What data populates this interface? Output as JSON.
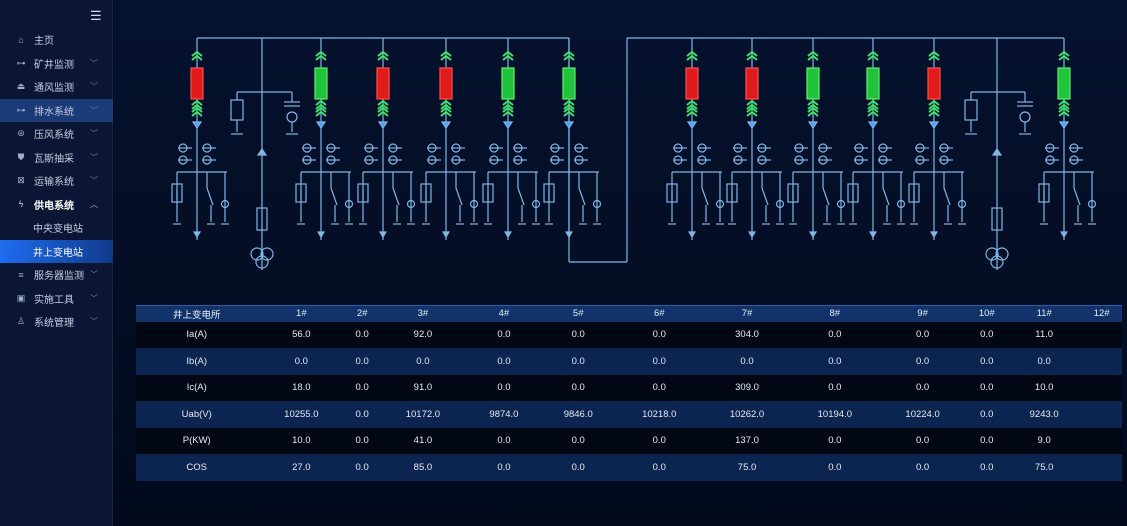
{
  "sidebar": {
    "menu_icon": "hamburger-icon",
    "items": [
      {
        "label": "主页",
        "icon": "home-icon"
      },
      {
        "label": "矿井监测",
        "icon": "monitor-icon",
        "chevron": "﹀"
      },
      {
        "label": "通风监测",
        "icon": "fan-icon",
        "chevron": "﹀"
      },
      {
        "label": "排水系统",
        "icon": "pump-icon",
        "chevron": "﹀",
        "highlight": true
      },
      {
        "label": "压风系统",
        "icon": "compressor-icon",
        "chevron": "﹀"
      },
      {
        "label": "瓦斯抽采",
        "icon": "gas-icon",
        "chevron": "﹀"
      },
      {
        "label": "运输系统",
        "icon": "transport-icon",
        "chevron": "﹀"
      },
      {
        "label": "供电系统",
        "icon": "power-icon",
        "chevron": "︿",
        "open": true
      }
    ],
    "subitems": [
      {
        "label": "中央变电站"
      },
      {
        "label": "井上变电站",
        "active": true
      }
    ],
    "items_after": [
      {
        "label": "服务器监测",
        "icon": "server-icon",
        "chevron": "﹀"
      },
      {
        "label": "实施工具",
        "icon": "tools-icon",
        "chevron": "﹀"
      },
      {
        "label": "系统管理",
        "icon": "users-icon",
        "chevron": "﹀"
      }
    ]
  },
  "diagram": {
    "colors": {
      "line": "#7fb6e6",
      "open": "#e01b1b",
      "closed": "#21c23c",
      "chevron": "#3ee06a"
    },
    "feeders": [
      {
        "state": "open"
      },
      {
        "state": "closed"
      },
      {
        "state": "open"
      },
      {
        "state": "open"
      },
      {
        "state": "closed"
      },
      {
        "state": "closed"
      },
      {
        "state": "open"
      },
      {
        "state": "open"
      },
      {
        "state": "closed"
      },
      {
        "state": "closed"
      },
      {
        "state": "open"
      },
      {
        "state": "closed"
      }
    ]
  },
  "table": {
    "headers": [
      "井上变电所",
      "1#",
      "2#",
      "3#",
      "4#",
      "5#",
      "6#",
      "7#",
      "8#",
      "9#",
      "10#",
      "11#",
      "12#"
    ],
    "rows": [
      [
        "Ia(A)",
        "56.0",
        "0.0",
        "92.0",
        "0.0",
        "0.0",
        "0.0",
        "304.0",
        "0.0",
        "0.0",
        "0.0",
        "11.0",
        ""
      ],
      [
        "Ib(A)",
        "0.0",
        "0.0",
        "0.0",
        "0.0",
        "0.0",
        "0.0",
        "0.0",
        "0.0",
        "0.0",
        "0.0",
        "0.0",
        ""
      ],
      [
        "Ic(A)",
        "18.0",
        "0.0",
        "91.0",
        "0.0",
        "0.0",
        "0.0",
        "309.0",
        "0.0",
        "0.0",
        "0.0",
        "10.0",
        ""
      ],
      [
        "Uab(V)",
        "10255.0",
        "0.0",
        "10172.0",
        "9874.0",
        "9846.0",
        "10218.0",
        "10262.0",
        "10194.0",
        "10224.0",
        "0.0",
        "9243.0",
        ""
      ],
      [
        "P(KW)",
        "10.0",
        "0.0",
        "41.0",
        "0.0",
        "0.0",
        "0.0",
        "137.0",
        "0.0",
        "0.0",
        "0.0",
        "9.0",
        ""
      ],
      [
        "COS",
        "27.0",
        "0.0",
        "85.0",
        "0.0",
        "0.0",
        "0.0",
        "75.0",
        "0.0",
        "0.0",
        "0.0",
        "75.0",
        ""
      ]
    ]
  }
}
